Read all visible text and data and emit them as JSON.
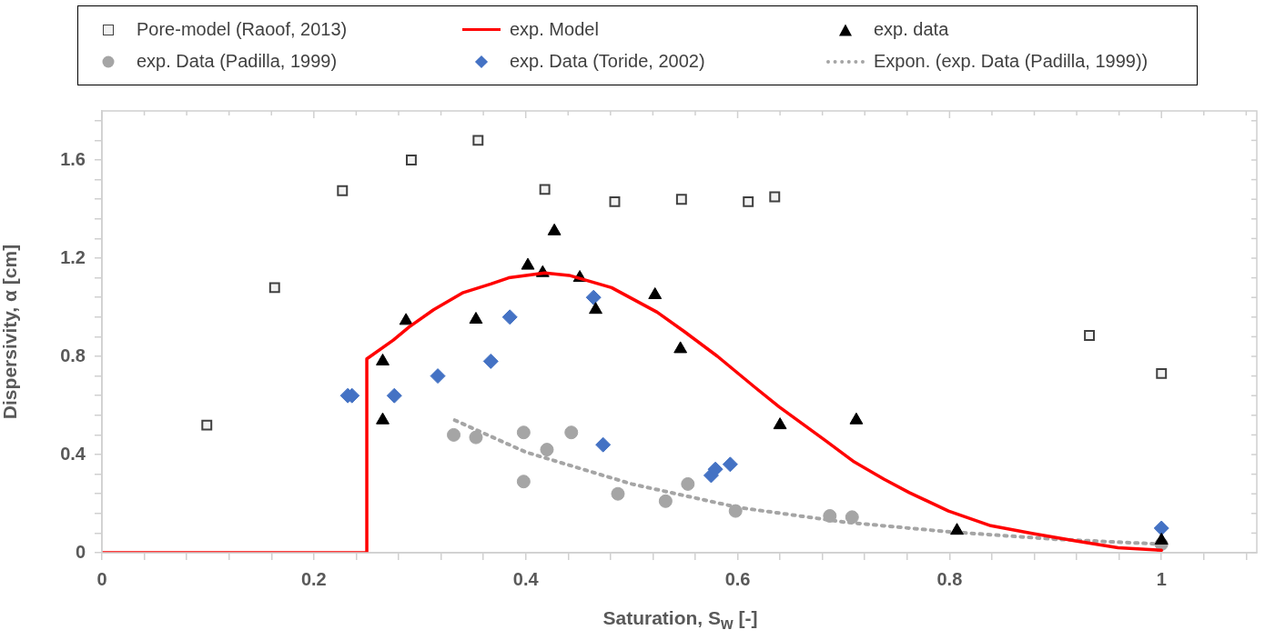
{
  "chart_data": {
    "type": "scatter",
    "xlabel": "Saturation, S$_{w}$ [-]",
    "ylabel": "Dispersivity, α [cm]",
    "xlim": [
      0,
      1.09
    ],
    "ylim": [
      0,
      1.8
    ],
    "xticks": [
      0,
      {
        "value": 0.04,
        "label": null
      },
      {
        "value": 0.08,
        "label": null
      },
      {
        "value": 0.12,
        "label": null
      },
      {
        "value": 0.16,
        "label": null
      },
      0.2,
      {
        "value": 0.24,
        "label": null
      },
      {
        "value": 0.28,
        "label": null
      },
      {
        "value": 0.32,
        "label": null
      },
      {
        "value": 0.36,
        "label": null
      },
      0.4,
      {
        "value": 0.44,
        "label": null
      },
      {
        "value": 0.48,
        "label": null
      },
      {
        "value": 0.52,
        "label": null
      },
      {
        "value": 0.56,
        "label": null
      },
      0.6,
      {
        "value": 0.64,
        "label": null
      },
      {
        "value": 0.68,
        "label": null
      },
      {
        "value": 0.72,
        "label": null
      },
      {
        "value": 0.76,
        "label": null
      },
      0.8,
      {
        "value": 0.84,
        "label": null
      },
      {
        "value": 0.88,
        "label": null
      },
      {
        "value": 0.92,
        "label": null
      },
      {
        "value": 0.96,
        "label": null
      },
      1,
      {
        "value": 1.04,
        "label": null
      },
      {
        "value": 1.08,
        "label": null
      }
    ],
    "yticks": [
      0,
      {
        "value": 0.08,
        "label": null
      },
      {
        "value": 0.16,
        "label": null
      },
      {
        "value": 0.24,
        "label": null
      },
      {
        "value": 0.32,
        "label": null
      },
      0.4,
      {
        "value": 0.48,
        "label": null
      },
      {
        "value": 0.56,
        "label": null
      },
      {
        "value": 0.64,
        "label": null
      },
      {
        "value": 0.72,
        "label": null
      },
      0.8,
      {
        "value": 0.88,
        "label": null
      },
      {
        "value": 0.96,
        "label": null
      },
      {
        "value": 1.04,
        "label": null
      },
      {
        "value": 1.12,
        "label": null
      },
      1.2,
      {
        "value": 1.28,
        "label": null
      },
      {
        "value": 1.36,
        "label": null
      },
      {
        "value": 1.44,
        "label": null
      },
      {
        "value": 1.52,
        "label": null
      },
      1.6,
      {
        "value": 1.68,
        "label": null
      },
      {
        "value": 1.76,
        "label": null
      }
    ],
    "grid": false,
    "legend": "top",
    "series": [
      {
        "name": "Pore-model (Raoof, 2013)",
        "type": "scatter",
        "marker": "square",
        "color": "#404040",
        "x": [
          0.099,
          0.163,
          0.227,
          0.292,
          0.355,
          0.418,
          0.484,
          0.547,
          0.61,
          0.635,
          0.932,
          1.0
        ],
        "values": [
          0.52,
          1.08,
          1.475,
          1.6,
          1.68,
          1.48,
          1.43,
          1.44,
          1.43,
          1.45,
          0.885,
          0.73
        ]
      },
      {
        "name": "exp. Model",
        "type": "line",
        "marker": "none",
        "line_style": "solid",
        "color": "#ff0000",
        "x": [
          0,
          0.25,
          0.25,
          0.275,
          0.29,
          0.313,
          0.341,
          0.367,
          0.384,
          0.418,
          0.441,
          0.481,
          0.524,
          0.55,
          0.581,
          0.616,
          0.639,
          0.682,
          0.71,
          0.738,
          0.762,
          0.799,
          0.839,
          0.879,
          0.919,
          0.959,
          1.0
        ],
        "values": [
          0,
          0,
          0.79,
          0.866,
          0.92,
          0.99,
          1.06,
          1.095,
          1.12,
          1.14,
          1.13,
          1.08,
          0.98,
          0.9,
          0.8,
          0.675,
          0.595,
          0.46,
          0.37,
          0.3,
          0.245,
          0.17,
          0.11,
          0.078,
          0.048,
          0.02,
          0.01
        ]
      },
      {
        "name": "exp. data",
        "type": "scatter",
        "marker": "triangle",
        "color": "#000000",
        "x": [
          0.265,
          0.287,
          0.265,
          0.353,
          0.402,
          0.416,
          0.427,
          0.451,
          0.466,
          0.522,
          0.546,
          0.64,
          0.712,
          0.807,
          1.0
        ],
        "values": [
          0.78,
          0.945,
          0.54,
          0.95,
          1.17,
          1.14,
          1.31,
          1.12,
          0.99,
          1.05,
          0.83,
          0.52,
          0.54,
          0.09,
          0.05
        ]
      },
      {
        "name": "exp. Data (Padilla, 1999)",
        "type": "scatter",
        "marker": "circle",
        "color": "#a5a5a5",
        "x": [
          0.332,
          0.353,
          0.398,
          0.398,
          0.42,
          0.443,
          0.487,
          0.532,
          0.553,
          0.598,
          0.687,
          0.708,
          1.0
        ],
        "values": [
          0.48,
          0.47,
          0.49,
          0.29,
          0.42,
          0.49,
          0.24,
          0.21,
          0.28,
          0.17,
          0.15,
          0.145,
          0.035
        ]
      },
      {
        "name": "exp. Data (Toride, 2002)",
        "type": "scatter",
        "marker": "diamond",
        "color": "#4472c4",
        "x": [
          0.232,
          0.236,
          0.276,
          0.317,
          0.367,
          0.385,
          0.464,
          0.473,
          0.575,
          0.579,
          0.593,
          1.0
        ],
        "values": [
          0.64,
          0.64,
          0.64,
          0.72,
          0.78,
          0.96,
          1.04,
          0.44,
          0.315,
          0.34,
          0.36,
          0.1
        ]
      },
      {
        "name": "Expon. (exp. Data (Padilla, 1999))",
        "type": "line",
        "marker": "none",
        "line_style": "dotted",
        "color": "#a5a5a5",
        "x": [
          0.333,
          0.4,
          0.5,
          0.6,
          0.7,
          0.8,
          0.9,
          1.0
        ],
        "values": [
          0.54,
          0.41,
          0.28,
          0.185,
          0.125,
          0.085,
          0.055,
          0.035
        ]
      }
    ]
  }
}
